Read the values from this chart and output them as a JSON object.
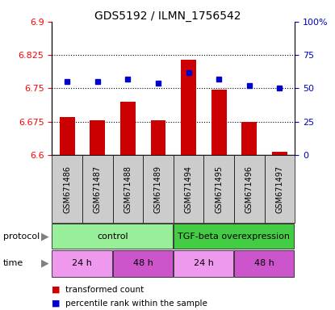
{
  "title": "GDS5192 / ILMN_1756542",
  "samples": [
    "GSM671486",
    "GSM671487",
    "GSM671488",
    "GSM671489",
    "GSM671494",
    "GSM671495",
    "GSM671496",
    "GSM671497"
  ],
  "bar_values": [
    6.685,
    6.678,
    6.72,
    6.678,
    6.815,
    6.748,
    6.675,
    6.608
  ],
  "blue_values": [
    55,
    55,
    57,
    54,
    62,
    57,
    52,
    50
  ],
  "ylim_left": [
    6.6,
    6.9
  ],
  "ylim_right": [
    0,
    100
  ],
  "yticks_left": [
    6.6,
    6.675,
    6.75,
    6.825,
    6.9
  ],
  "yticks_right": [
    0,
    25,
    50,
    75,
    100
  ],
  "ytick_labels_right": [
    "0",
    "25",
    "50",
    "75",
    "100%"
  ],
  "hlines": [
    6.675,
    6.75,
    6.825
  ],
  "bar_color": "#cc0000",
  "blue_color": "#0000cc",
  "bar_bottom": 6.6,
  "protocol_control_color": "#99ee99",
  "protocol_tgf_color": "#44cc44",
  "time_24_color": "#ee99ee",
  "time_48_color": "#cc55cc",
  "sample_box_color": "#cccccc",
  "title_fontsize": 10,
  "bar_width": 0.5
}
